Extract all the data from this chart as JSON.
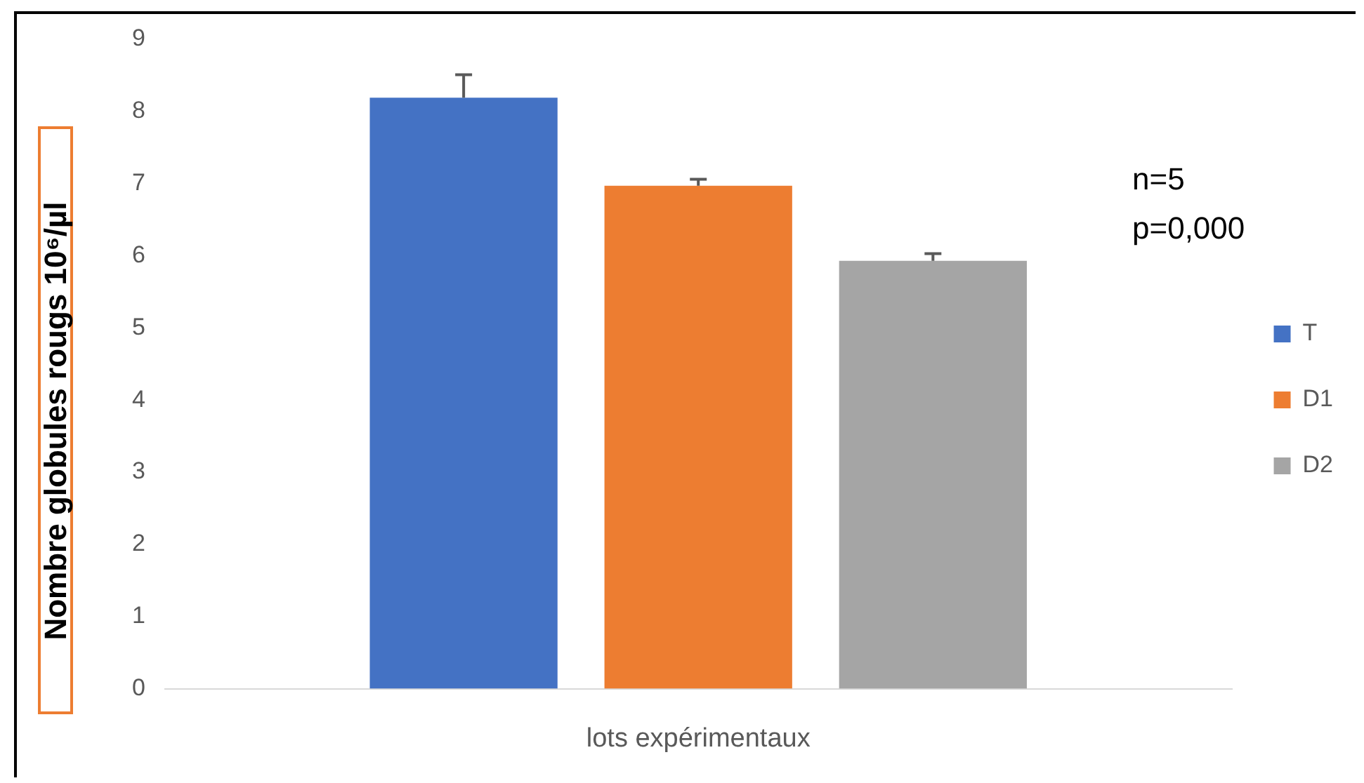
{
  "chart_data": {
    "type": "bar",
    "xlabel": "lots expérimentaux",
    "ylabel": "Nombre globules rougs 10⁶/µl",
    "categories": [
      null
    ],
    "series": [
      {
        "name": "T",
        "color": "#4472c4",
        "values": [
          8.19
        ],
        "errors": [
          [
            8.19,
            8.51
          ]
        ]
      },
      {
        "name": "D1",
        "color": "#ed7d31",
        "values": [
          6.97
        ],
        "errors": [
          [
            6.97,
            7.06
          ]
        ]
      },
      {
        "name": "D2",
        "color": "#a5a5a5",
        "values": [
          5.93
        ],
        "errors": [
          [
            5.93,
            6.03
          ]
        ]
      }
    ],
    "ylim": [
      0,
      9
    ],
    "yticks": [
      0,
      1,
      2,
      3,
      4,
      5,
      6,
      7,
      8,
      9
    ],
    "grid": false,
    "legend": "right",
    "annotations": [
      "n=5",
      "p=0,000"
    ]
  }
}
